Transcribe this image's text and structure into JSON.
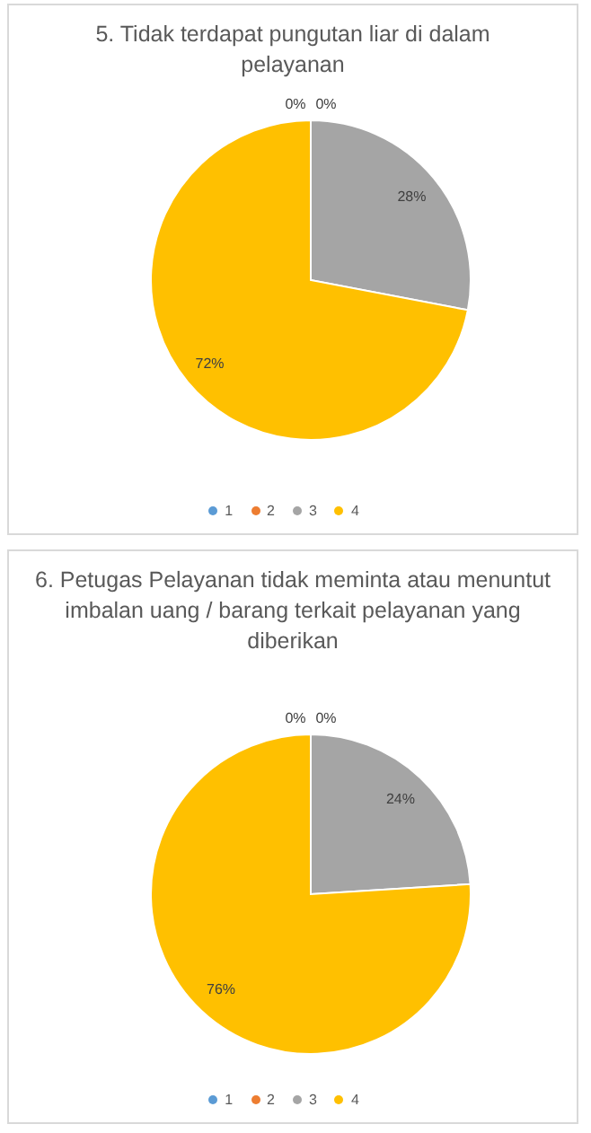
{
  "chart_data": [
    {
      "type": "pie",
      "title": "5. Tidak terdapat pungutan liar di dalam pelayanan",
      "categories": [
        "1",
        "2",
        "3",
        "4"
      ],
      "values": [
        0,
        0,
        28,
        72
      ],
      "colors": [
        "#5b9bd5",
        "#ed7d31",
        "#a5a5a5",
        "#ffc000"
      ],
      "value_labels": [
        "0%",
        "0%",
        "28%",
        "72%"
      ],
      "legend": "bottom"
    },
    {
      "type": "pie",
      "title": "6. Petugas Pelayanan tidak meminta atau menuntut imbalan uang / barang terkait pelayanan yang diberikan",
      "categories": [
        "1",
        "2",
        "3",
        "4"
      ],
      "values": [
        0,
        0,
        24,
        76
      ],
      "colors": [
        "#5b9bd5",
        "#ed7d31",
        "#a5a5a5",
        "#ffc000"
      ],
      "value_labels": [
        "0%",
        "0%",
        "24%",
        "76%"
      ],
      "legend": "bottom"
    }
  ]
}
